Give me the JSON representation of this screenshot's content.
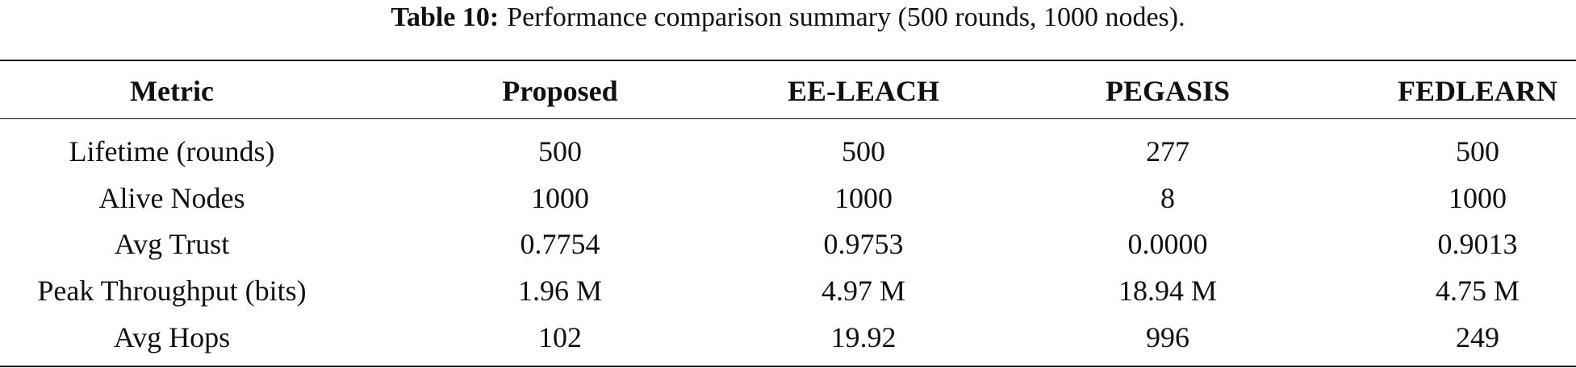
{
  "caption": {
    "label": "Table 10:",
    "text": "Performance comparison summary (500 rounds, 1000 nodes)."
  },
  "table": {
    "header": [
      "Metric",
      "Proposed",
      "EE-LEACH",
      "PEGASIS",
      "FEDLEARN"
    ],
    "rows": [
      [
        "Lifetime (rounds)",
        "500",
        "500",
        "277",
        "500"
      ],
      [
        "Alive Nodes",
        "1000",
        "1000",
        "8",
        "1000"
      ],
      [
        "Avg Trust",
        "0.7754",
        "0.9753",
        "0.0000",
        "0.9013"
      ],
      [
        "Peak Throughput (bits)",
        "1.96 M",
        "4.97 M",
        "18.94 M",
        "4.75 M"
      ],
      [
        "Avg Hops",
        "102",
        "19.92",
        "996",
        "249"
      ]
    ]
  }
}
